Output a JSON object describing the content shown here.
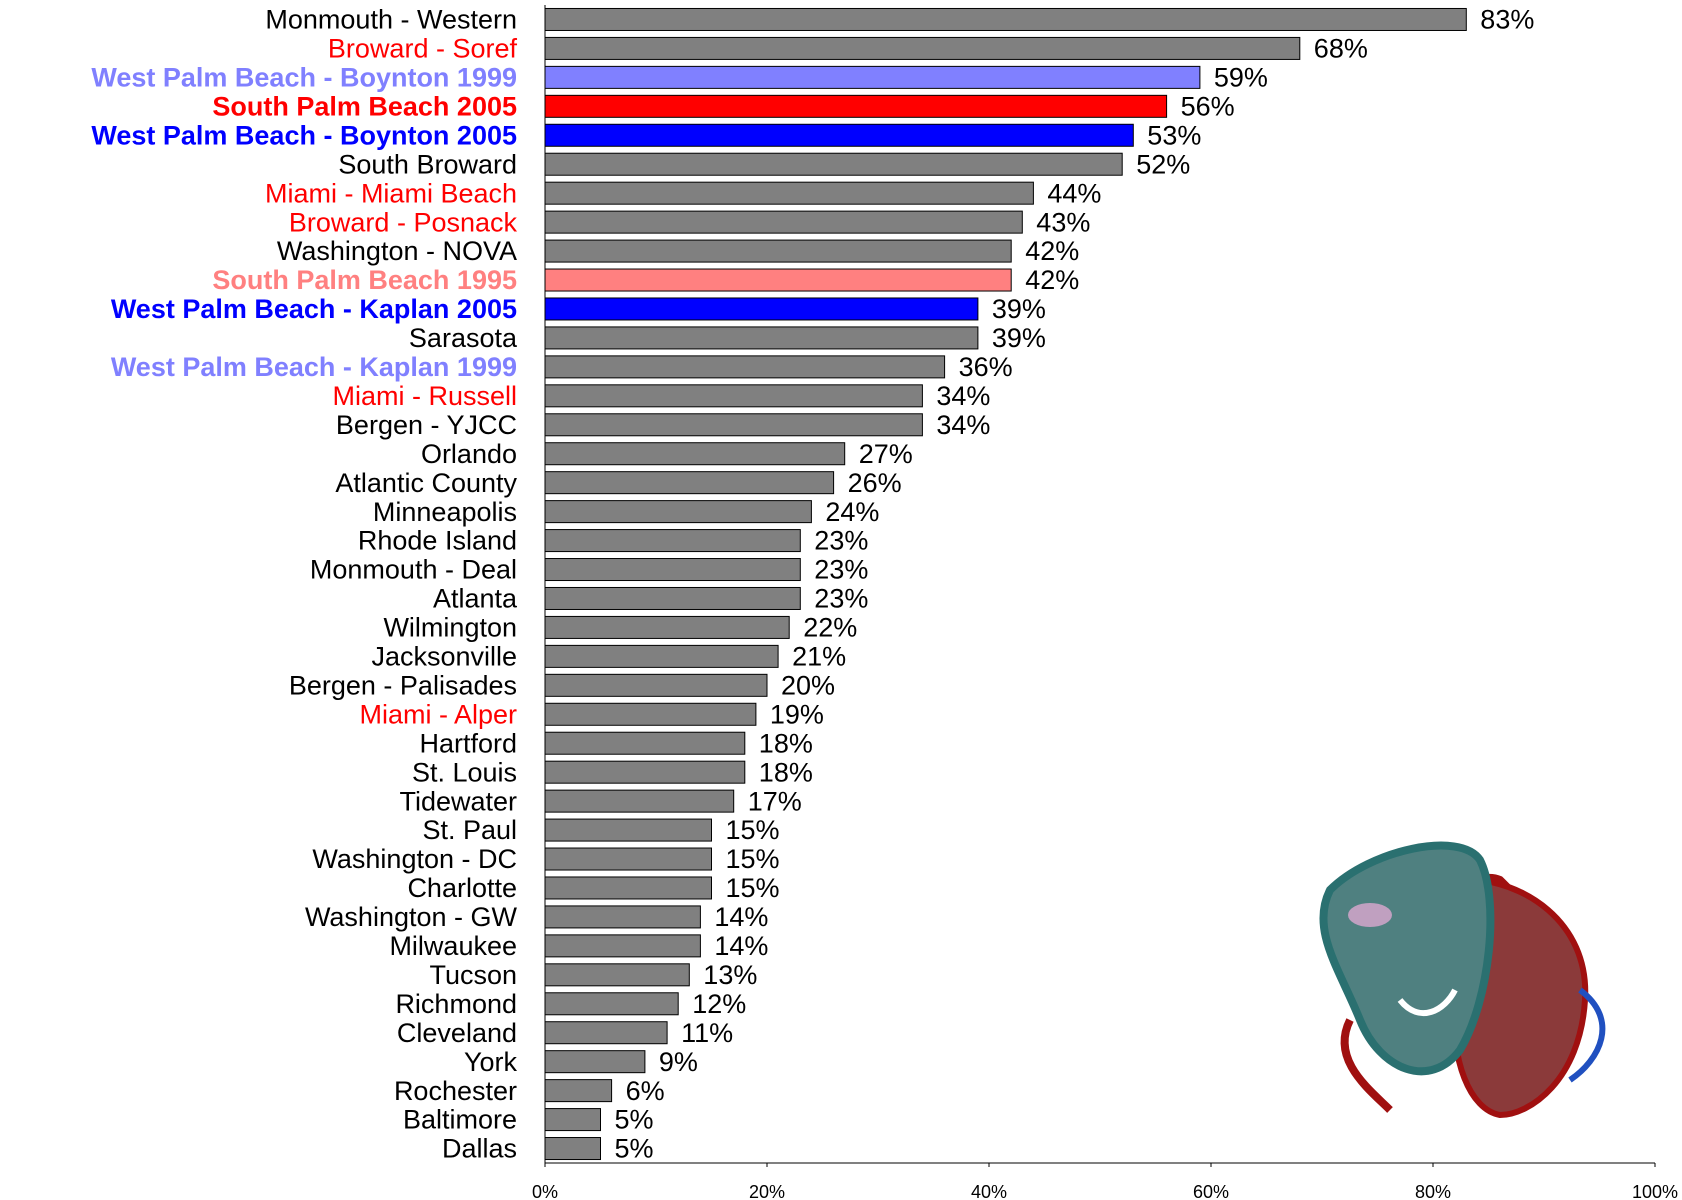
{
  "chart_data": {
    "type": "barh",
    "categories": [
      "Monmouth - Western",
      "Broward - Soref",
      "West Palm Beach - Boynton 1999",
      "South Palm Beach 2005",
      "West Palm Beach - Boynton 2005",
      "South Broward",
      "Miami - Miami Beach",
      "Broward - Posnack",
      "Washington - NOVA",
      "South Palm Beach 1995",
      "West Palm Beach - Kaplan 2005",
      "Sarasota",
      "West Palm Beach - Kaplan 1999",
      "Miami - Russell",
      "Bergen - YJCC",
      "Orlando",
      "Atlantic County",
      "Minneapolis",
      "Rhode Island",
      "Monmouth - Deal",
      "Atlanta",
      "Wilmington",
      "Jacksonville",
      "Bergen - Palisades",
      "Miami - Alper",
      "Hartford",
      "St. Louis",
      "Tidewater",
      "St. Paul",
      "Washington - DC",
      "Charlotte",
      "Washington - GW",
      "Milwaukee",
      "Tucson",
      "Richmond",
      "Cleveland",
      "York",
      "Rochester",
      "Baltimore",
      "Dallas"
    ],
    "values": [
      83,
      68,
      59,
      56,
      53,
      52,
      44,
      43,
      42,
      42,
      39,
      39,
      36,
      34,
      34,
      27,
      26,
      24,
      23,
      23,
      23,
      22,
      21,
      20,
      19,
      18,
      18,
      17,
      15,
      15,
      15,
      14,
      14,
      13,
      12,
      11,
      9,
      6,
      5,
      5
    ],
    "value_labels": [
      "83%",
      "68%",
      "59%",
      "56%",
      "53%",
      "52%",
      "44%",
      "43%",
      "42%",
      "42%",
      "39%",
      "39%",
      "36%",
      "34%",
      "34%",
      "27%",
      "26%",
      "24%",
      "23%",
      "23%",
      "23%",
      "22%",
      "21%",
      "20%",
      "19%",
      "18%",
      "18%",
      "17%",
      "15%",
      "15%",
      "15%",
      "14%",
      "14%",
      "13%",
      "12%",
      "11%",
      "9%",
      "6%",
      "5%",
      "5%"
    ],
    "colors": [
      "#808080",
      "#808080",
      "#8080ff",
      "#ff0000",
      "#0000ff",
      "#808080",
      "#808080",
      "#808080",
      "#808080",
      "#ff8080",
      "#0000ff",
      "#808080",
      "#808080",
      "#808080",
      "#808080",
      "#808080",
      "#808080",
      "#808080",
      "#808080",
      "#808080",
      "#808080",
      "#808080",
      "#808080",
      "#808080",
      "#808080",
      "#808080",
      "#808080",
      "#808080",
      "#808080",
      "#808080",
      "#808080",
      "#808080",
      "#808080",
      "#808080",
      "#808080",
      "#808080",
      "#808080",
      "#808080",
      "#808080",
      "#808080"
    ],
    "label_colors": [
      "#000000",
      "#ff0000",
      "#8080ff",
      "#ff0000",
      "#0000ff",
      "#000000",
      "#ff0000",
      "#ff0000",
      "#000000",
      "#ff8080",
      "#0000ff",
      "#000000",
      "#8080ff",
      "#ff0000",
      "#000000",
      "#000000",
      "#000000",
      "#000000",
      "#000000",
      "#000000",
      "#000000",
      "#000000",
      "#000000",
      "#000000",
      "#ff0000",
      "#000000",
      "#000000",
      "#000000",
      "#000000",
      "#000000",
      "#000000",
      "#000000",
      "#000000",
      "#000000",
      "#000000",
      "#000000",
      "#000000",
      "#000000",
      "#000000",
      "#000000"
    ],
    "label_bold": [
      false,
      false,
      true,
      true,
      true,
      false,
      false,
      false,
      false,
      true,
      true,
      false,
      true,
      false,
      false,
      false,
      false,
      false,
      false,
      false,
      false,
      false,
      false,
      false,
      false,
      false,
      false,
      false,
      false,
      false,
      false,
      false,
      false,
      false,
      false,
      false,
      false,
      false,
      false,
      false
    ],
    "xlim": [
      0,
      100
    ],
    "xticks": [
      {
        "value": 0,
        "label": "0%"
      },
      {
        "value": 20,
        "label": "20%"
      },
      {
        "value": 40,
        "label": "40%"
      },
      {
        "value": 60,
        "label": "60%"
      },
      {
        "value": 80,
        "label": "80%"
      },
      {
        "value": 100,
        "label": "100%"
      }
    ],
    "grid": false
  }
}
